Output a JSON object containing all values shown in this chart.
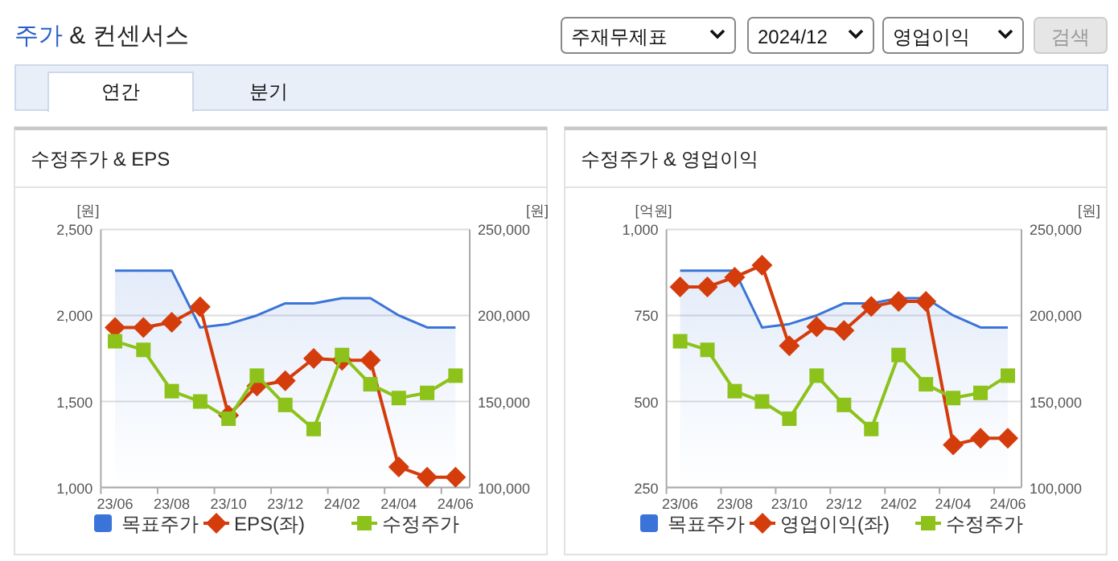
{
  "chart_data": [
    {
      "type": "other",
      "title": "주가 & 컨센서스",
      "annotations": [
        "주재무제표",
        "2024/12",
        "영업이익",
        "검색",
        "연간",
        "분기"
      ]
    },
    {
      "type": "line",
      "title": "수정주가 & EPS",
      "ylabel": "[원]",
      "y2label": "[원]",
      "categories": [
        "23/06",
        null,
        "23/08",
        null,
        "23/10",
        null,
        "23/12",
        null,
        "24/02",
        null,
        "24/04",
        null,
        "24/06"
      ],
      "series": [
        {
          "name": "목표주가",
          "type": "area",
          "axis": "y2",
          "color": "#3a74d8",
          "values": [
            226000,
            226000,
            226000,
            193000,
            195000,
            200000,
            207000,
            207000,
            210000,
            210000,
            200000,
            193000,
            193000
          ]
        },
        {
          "name": "EPS(좌)",
          "type": "line",
          "marker": "diamond",
          "color": "#d43c0c",
          "values": [
            1930,
            1930,
            1960,
            2050,
            1420,
            1590,
            1620,
            1750,
            1740,
            1740,
            1120,
            1060,
            1060
          ]
        },
        {
          "name": "수정주가",
          "type": "line",
          "axis": "y2",
          "marker": "square",
          "color": "#8cc21a",
          "values": [
            185000,
            180000,
            156000,
            150000,
            140000,
            165000,
            148000,
            134000,
            177000,
            160000,
            152000,
            155000,
            165000
          ]
        }
      ],
      "ylim": [
        1000,
        2500
      ],
      "yticks": [
        {
          "value": 1000,
          "label": "1,000"
        },
        {
          "value": 1500,
          "label": "1,500"
        },
        {
          "value": 2000,
          "label": "2,000"
        },
        {
          "value": 2500,
          "label": "2,500"
        }
      ],
      "y2lim": [
        100000,
        250000
      ],
      "y2ticks": [
        {
          "value": 100000,
          "label": "100,000"
        },
        {
          "value": 150000,
          "label": "150,000"
        },
        {
          "value": 200000,
          "label": "200,000"
        },
        {
          "value": 250000,
          "label": "250,000"
        }
      ],
      "grid": "y",
      "legend": "bottom"
    },
    {
      "type": "line",
      "title": "수정주가 & 영업이익",
      "ylabel": "[억원]",
      "y2label": "[원]",
      "categories": [
        "23/06",
        null,
        "23/08",
        null,
        "23/10",
        null,
        "23/12",
        null,
        "24/02",
        null,
        "24/04",
        null,
        "24/06"
      ],
      "series": [
        {
          "name": "목표주가",
          "type": "area",
          "axis": "y2",
          "color": "#3a74d8",
          "values": [
            226000,
            226000,
            226000,
            193000,
            195000,
            200000,
            207000,
            207000,
            210000,
            210000,
            200000,
            193000,
            193000
          ]
        },
        {
          "name": "영업이익(좌)",
          "type": "line",
          "marker": "diamond",
          "color": "#d43c0c",
          "values": [
            833,
            833,
            861,
            896,
            662,
            717,
            706,
            776,
            791,
            791,
            374,
            393,
            393
          ]
        },
        {
          "name": "수정주가",
          "type": "line",
          "axis": "y2",
          "marker": "square",
          "color": "#8cc21a",
          "values": [
            185000,
            180000,
            156000,
            150000,
            140000,
            165000,
            148000,
            134000,
            177000,
            160000,
            152000,
            155000,
            165000
          ]
        }
      ],
      "ylim": [
        250,
        1000
      ],
      "yticks": [
        250,
        500,
        750,
        {
          "value": 1000,
          "label": "1,000"
        }
      ],
      "y2lim": [
        100000,
        250000
      ],
      "y2ticks": [
        {
          "value": 100000,
          "label": "100,000"
        },
        {
          "value": 150000,
          "label": "150,000"
        },
        {
          "value": 200000,
          "label": "200,000"
        },
        {
          "value": 250000,
          "label": "250,000"
        }
      ],
      "grid": "y",
      "legend": "bottom"
    }
  ]
}
